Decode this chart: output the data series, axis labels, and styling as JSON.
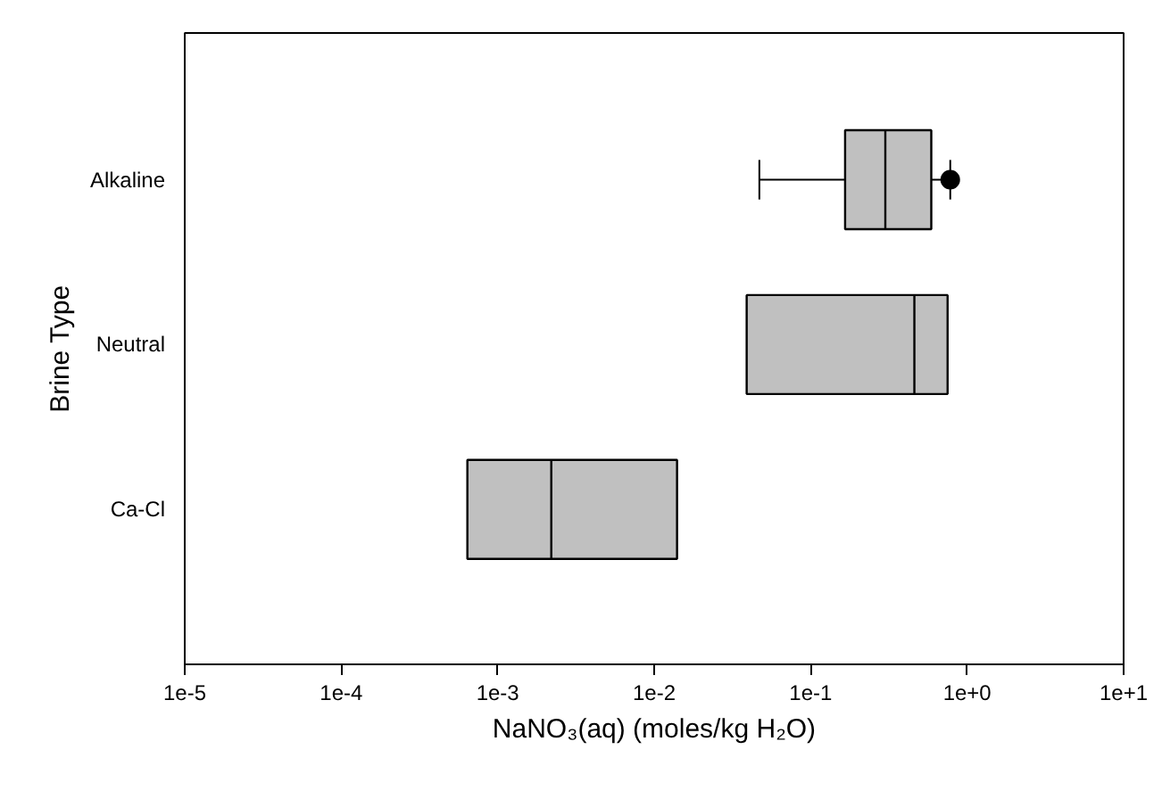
{
  "chart_data": {
    "type": "box",
    "orientation": "horizontal",
    "log": "x",
    "xlabel": "NaNO₃(aq) (moles/kg H₂O)",
    "ylabel": "Brine Type",
    "categories": [
      "Alkaline",
      "Neutral",
      "Ca-Cl"
    ],
    "color": "#c0c0c0",
    "boxes": [
      {
        "low": 0.047,
        "q1": 0.166,
        "median": 0.3,
        "q3": 0.59,
        "high": 0.78,
        "outliers": [
          0.78
        ]
      },
      {
        "low": 0.039,
        "q1": 0.039,
        "median": 0.46,
        "q3": 0.75,
        "high": 0.75
      },
      {
        "low": 0.00064,
        "q1": 0.00064,
        "median": 0.0022,
        "q3": 0.014,
        "high": 0.014
      }
    ],
    "xlim": [
      1e-05,
      10
    ],
    "xticks": [
      {
        "value": 1e-05,
        "label": "1e-5"
      },
      {
        "value": 0.0001,
        "label": "1e-4"
      },
      {
        "value": 0.001,
        "label": "1e-3"
      },
      {
        "value": 0.01,
        "label": "1e-2"
      },
      {
        "value": 0.1,
        "label": "1e-1"
      },
      {
        "value": 1,
        "label": "1e+0"
      },
      {
        "value": 10,
        "label": "1e+1"
      }
    ],
    "grid": false
  }
}
